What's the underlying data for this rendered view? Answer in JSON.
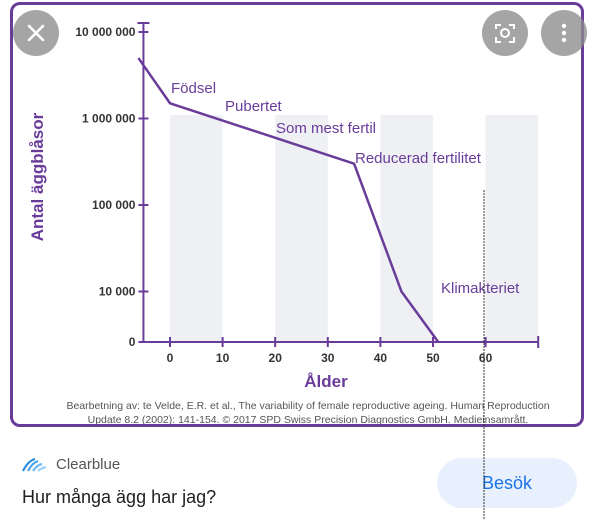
{
  "chart_data": {
    "type": "line",
    "title": "",
    "xlabel": "Ålder",
    "ylabel": "Antal äggblåsor",
    "x_ticks": [
      "0",
      "10",
      "20",
      "30",
      "40",
      "50",
      "60"
    ],
    "y_ticks": [
      "10 000 000",
      "1 000 000",
      "100 000",
      "10 000",
      "0"
    ],
    "y_scale": "log",
    "xlim": [
      -6,
      70
    ],
    "series": [
      {
        "x": [
          -6,
          0,
          35,
          44,
          51
        ],
        "y": [
          5000000,
          1500000,
          300000,
          10000,
          0
        ]
      }
    ],
    "annotations": [
      {
        "text": "Födsel"
      },
      {
        "text": "Pubertet"
      },
      {
        "text": "Som mest fertil"
      },
      {
        "text": "Reducerad fertilitet"
      },
      {
        "text": "Klimakteriet"
      }
    ],
    "colors": {
      "line": "#6a3c9a",
      "axis": "#6a3c9a",
      "band": "#eef0f4"
    }
  },
  "credit": {
    "line1": "Bearbetning av: te Velde, E.R. et al., The variability of female reproductive ageing. Human Reproduction",
    "line2": "Update 8.2 (2002): 141-154. © 2017 SPD Swiss Precision Diagnostics GmbH. Medieinsamrått."
  },
  "source": {
    "name": "Clearblue",
    "icon": "clearblue-logo-icon"
  },
  "result": {
    "title": "Hur många ägg har jag?"
  },
  "actions": {
    "visit_label": "Besök",
    "close_icon": "close-icon",
    "lens_icon": "lens-icon",
    "more_icon": "more-vert-icon"
  }
}
